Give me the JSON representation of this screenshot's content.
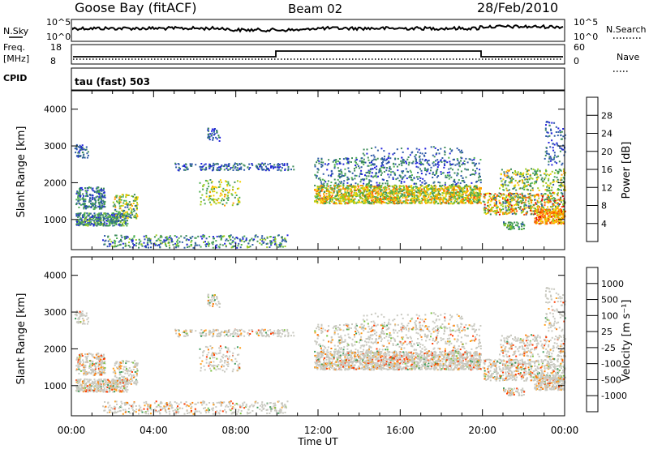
{
  "header": {
    "site": "Goose Bay (fitACF)",
    "beam": "Beam 02",
    "date": "28/Feb/2010"
  },
  "top_panels": {
    "nsky_label": "N.Sky",
    "nsky_ticks": [
      "10^5",
      "10^0"
    ],
    "nsearch_label": "N.Search",
    "nsearch_ticks": [
      "10^5",
      "10^0"
    ],
    "freq_label": "Freq.",
    "freq_unit": "[MHz]",
    "freq_ticks": [
      "18",
      "8"
    ],
    "nave_label": "Nave",
    "nave_ticks": [
      "60",
      "0"
    ],
    "cpid_label": "CPID",
    "cpid_text": "tau (fast) 503"
  },
  "chart_data": [
    {
      "type": "heatmap",
      "name": "power",
      "ylabel": "Slant Range [km]",
      "y_ticks": [
        "1000",
        "2000",
        "3000",
        "4000"
      ],
      "ylim": [
        180,
        4500
      ],
      "colorbar_label": "Power [dB]",
      "colorbar_ticks": [
        "4",
        "8",
        "12",
        "16",
        "20",
        "24",
        "28"
      ],
      "colors": [
        "#2222dd",
        "#2e5aa8",
        "#3d8b5a",
        "#4caf50",
        "#9ccc20",
        "#f5d000",
        "#ff9900",
        "#ff5a00",
        "#e00000"
      ]
    },
    {
      "type": "heatmap",
      "name": "velocity",
      "ylabel": "Slant Range [km]",
      "y_ticks": [
        "1000",
        "2000",
        "3000",
        "4000"
      ],
      "ylim": [
        180,
        4500
      ],
      "colorbar_label": "Velocity [m s⁻¹]",
      "colorbar_ticks": [
        "1000",
        "500",
        "100",
        "25",
        "-25",
        "-100",
        "-500",
        "-1000"
      ],
      "colors": [
        "#2233cc",
        "#2e6a8a",
        "#3d9b5a",
        "#7cc242",
        "#c9c9c0",
        "#c9c9c0",
        "#ff9f1a",
        "#ff7a00",
        "#ff3a00",
        "#e00000"
      ]
    }
  ],
  "x_axis": {
    "ticks": [
      "00:00",
      "04:00",
      "08:00",
      "12:00",
      "16:00",
      "20:00",
      "00:00"
    ],
    "label": "Time UT"
  }
}
